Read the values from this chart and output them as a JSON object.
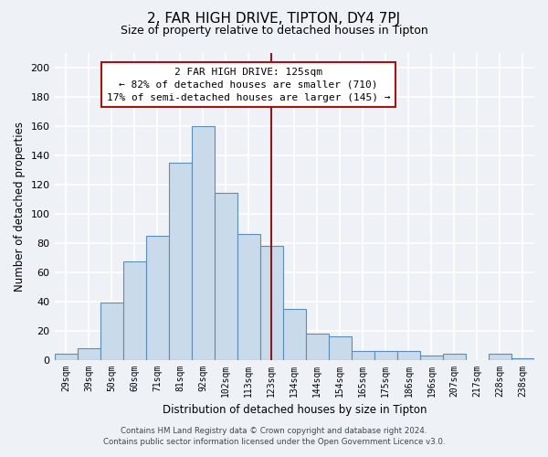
{
  "title": "2, FAR HIGH DRIVE, TIPTON, DY4 7PJ",
  "subtitle": "Size of property relative to detached houses in Tipton",
  "xlabel": "Distribution of detached houses by size in Tipton",
  "ylabel": "Number of detached properties",
  "bin_labels": [
    "29sqm",
    "39sqm",
    "50sqm",
    "60sqm",
    "71sqm",
    "81sqm",
    "92sqm",
    "102sqm",
    "113sqm",
    "123sqm",
    "134sqm",
    "144sqm",
    "154sqm",
    "165sqm",
    "175sqm",
    "186sqm",
    "196sqm",
    "207sqm",
    "217sqm",
    "228sqm",
    "238sqm"
  ],
  "bin_values": [
    4,
    8,
    39,
    67,
    85,
    135,
    160,
    114,
    86,
    78,
    35,
    18,
    16,
    6,
    6,
    6,
    3,
    4,
    0,
    4,
    1
  ],
  "bar_color": "#c9daea",
  "bar_edge_color": "#5b8db8",
  "vline_x_index": 9,
  "vline_color": "#8b1a1a",
  "annotation_title": "2 FAR HIGH DRIVE: 125sqm",
  "annotation_line1": "← 82% of detached houses are smaller (710)",
  "annotation_line2": "17% of semi-detached houses are larger (145) →",
  "annotation_box_facecolor": "#ffffff",
  "annotation_box_edgecolor": "#aa1111",
  "ylim": [
    0,
    210
  ],
  "yticks": [
    0,
    20,
    40,
    60,
    80,
    100,
    120,
    140,
    160,
    180,
    200
  ],
  "footnote1": "Contains HM Land Registry data © Crown copyright and database right 2024.",
  "footnote2": "Contains public sector information licensed under the Open Government Licence v3.0.",
  "bg_color": "#eef2f7",
  "grid_color": "#ffffff",
  "title_fontsize": 11,
  "subtitle_fontsize": 9
}
